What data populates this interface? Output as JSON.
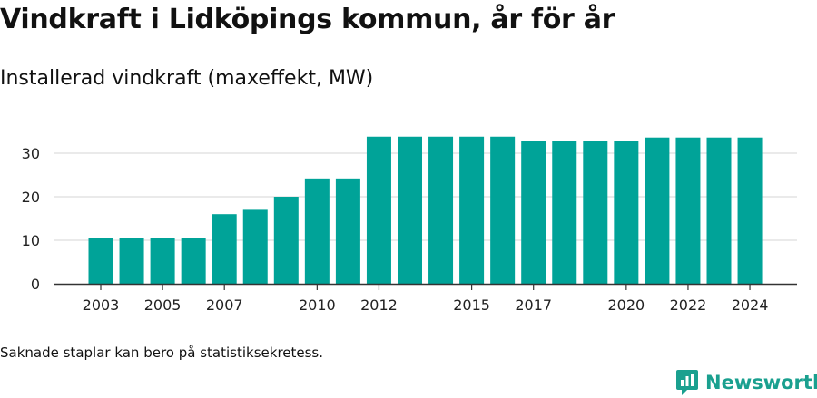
{
  "header": {
    "title": "Vindkraft i Lidköpings kommun, år för år",
    "subtitle": "Installerad vindkraft (maxeffekt, MW)"
  },
  "footer": {
    "note": "Saknade staplar kan bero på statistiksekretess.",
    "brand": "Newsworthy"
  },
  "colors": {
    "bar": "#00a398",
    "grid": "#dddddd",
    "brand": "#1aa08f"
  },
  "chart_data": {
    "type": "bar",
    "title": "Vindkraft i Lidköpings kommun, år för år",
    "subtitle": "Installerad vindkraft (maxeffekt, MW)",
    "xlabel": "",
    "ylabel": "",
    "categories": [
      2003,
      2004,
      2005,
      2006,
      2007,
      2008,
      2009,
      2010,
      2011,
      2012,
      2013,
      2014,
      2015,
      2016,
      2017,
      2018,
      2019,
      2020,
      2021,
      2022,
      2023,
      2024
    ],
    "values": [
      10.5,
      10.5,
      10.5,
      10.5,
      16,
      17,
      20,
      24.2,
      24.2,
      33.8,
      33.8,
      33.8,
      33.8,
      33.8,
      32.8,
      32.8,
      32.8,
      32.8,
      33.6,
      33.6,
      33.6,
      33.6
    ],
    "x_tick_labels": [
      "2003",
      "2005",
      "2007",
      "2010",
      "2012",
      "2015",
      "2017",
      "2020",
      "2022",
      "2024"
    ],
    "y_ticks": [
      0,
      10,
      20,
      30
    ],
    "ylim": [
      0,
      35
    ],
    "grid": true,
    "legend": "none"
  }
}
